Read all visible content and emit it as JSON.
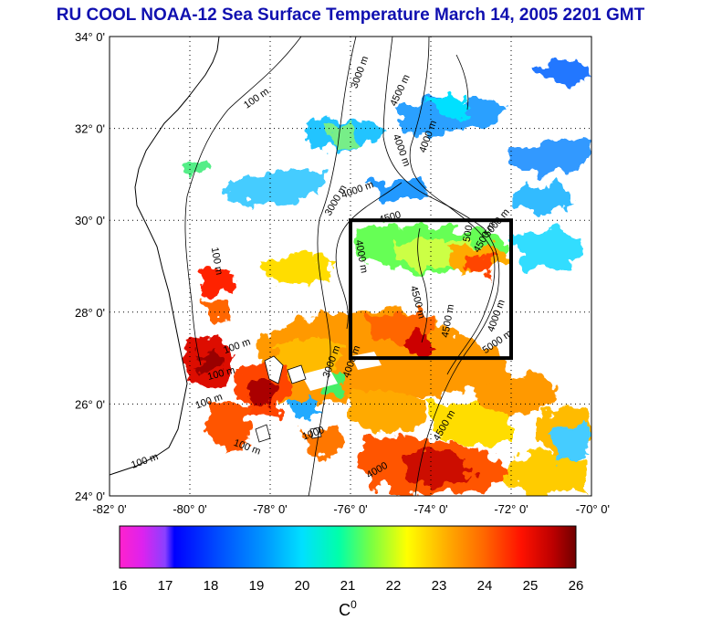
{
  "title": "RU COOL  NOAA-12 Sea Surface Temperature March 14, 2005 2201 GMT",
  "map": {
    "lon_range": [
      -82,
      -70
    ],
    "lat_range": [
      24,
      34
    ],
    "lon_ticks": [
      "-82° 0'",
      "-80° 0'",
      "-78° 0'",
      "-76° 0'",
      "-74° 0'",
      "-72° 0'",
      "-70° 0'"
    ],
    "lat_ticks": [
      "24° 0'",
      "26° 0'",
      "28° 0'",
      "30° 0'",
      "32° 0'",
      "34° 0'"
    ],
    "study_box": {
      "lon": [
        -76,
        -72
      ],
      "lat": [
        27,
        30
      ]
    },
    "contour_labels": [
      {
        "text": "100 m",
        "lon": -78.3,
        "lat": 32.6,
        "rot": -35
      },
      {
        "text": "100 m",
        "lon": -79.4,
        "lat": 29.1,
        "rot": 80
      },
      {
        "text": "3000 m",
        "lon": -75.7,
        "lat": 33.2,
        "rot": -70
      },
      {
        "text": "4500 m",
        "lon": -74.7,
        "lat": 32.8,
        "rot": -65
      },
      {
        "text": "4000 m",
        "lon": -74.0,
        "lat": 31.8,
        "rot": -70
      },
      {
        "text": "4000 m",
        "lon": -74.8,
        "lat": 31.5,
        "rot": 70
      },
      {
        "text": "3000 m",
        "lon": -76.3,
        "lat": 30.4,
        "rot": -60
      },
      {
        "text": "4000 m",
        "lon": -75.8,
        "lat": 30.6,
        "rot": -20
      },
      {
        "text": "4500",
        "lon": -75.0,
        "lat": 30.0,
        "rot": -15
      },
      {
        "text": "4000 m",
        "lon": -75.8,
        "lat": 29.2,
        "rot": 80
      },
      {
        "text": "500",
        "lon": -73.0,
        "lat": 29.7,
        "rot": -80
      },
      {
        "text": "4500 m",
        "lon": -72.6,
        "lat": 29.6,
        "rot": -60
      },
      {
        "text": "5000 m",
        "lon": -72.3,
        "lat": 29.9,
        "rot": -50
      },
      {
        "text": "4500 m",
        "lon": -74.4,
        "lat": 28.2,
        "rot": 75
      },
      {
        "text": "4500 m",
        "lon": -73.5,
        "lat": 27.8,
        "rot": -80
      },
      {
        "text": "4000 m",
        "lon": -72.3,
        "lat": 27.9,
        "rot": -70
      },
      {
        "text": "5000 m",
        "lon": -72.3,
        "lat": 27.3,
        "rot": -35
      },
      {
        "text": "100 m",
        "lon": -78.8,
        "lat": 27.2,
        "rot": -20
      },
      {
        "text": "100 m",
        "lon": -79.2,
        "lat": 26.6,
        "rot": -15
      },
      {
        "text": "100 m",
        "lon": -79.5,
        "lat": 26.0,
        "rot": -20
      },
      {
        "text": "100 m",
        "lon": -78.6,
        "lat": 25.0,
        "rot": 20
      },
      {
        "text": "100 m",
        "lon": -81.1,
        "lat": 24.7,
        "rot": -20
      },
      {
        "text": "3000 m",
        "lon": -76.4,
        "lat": 26.9,
        "rot": -70
      },
      {
        "text": "4000 m",
        "lon": -75.9,
        "lat": 26.9,
        "rot": -70
      },
      {
        "text": "1000",
        "lon": -76.9,
        "lat": 25.3,
        "rot": -20
      },
      {
        "text": "4000",
        "lon": -75.3,
        "lat": 24.5,
        "rot": -30
      },
      {
        "text": "4500 m",
        "lon": -73.6,
        "lat": 25.5,
        "rot": -60
      }
    ]
  },
  "colorbar": {
    "ticks": [
      "16",
      "17",
      "18",
      "19",
      "20",
      "21",
      "22",
      "23",
      "24",
      "25",
      "26"
    ],
    "unit": "C",
    "unit_superscript": "0",
    "range": [
      16,
      26
    ]
  },
  "colors": {
    "title": "#1010b0",
    "land": "#ffffff",
    "cloud": "#ffffff",
    "box": "#000000"
  }
}
